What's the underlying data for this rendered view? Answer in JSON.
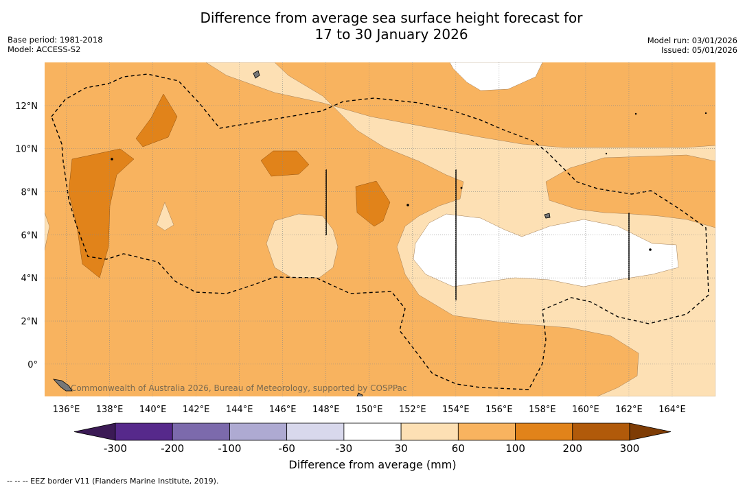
{
  "title": {
    "line1": "Difference from average sea surface height forecast for",
    "line2": "17 to 30 January 2026"
  },
  "meta_left": {
    "base_period": "Base period: 1981-2018",
    "model": "Model: ACCESS-S2"
  },
  "meta_right": {
    "model_run": "Model run: 03/01/2026",
    "issued": "Issued: 05/01/2026"
  },
  "map": {
    "credit": "Commonwealth of Australia 2026, Bureau of Meteorology, supported by COSPPac",
    "lon_labels": [
      "136°E",
      "138°E",
      "140°E",
      "142°E",
      "144°E",
      "146°E",
      "148°E",
      "150°E",
      "152°E",
      "154°E",
      "156°E",
      "158°E",
      "160°E",
      "162°E",
      "164°E"
    ],
    "lat_labels": [
      "12°N",
      "10°N",
      "8°N",
      "6°N",
      "4°N",
      "2°N",
      "0°"
    ],
    "lon_range": [
      135,
      166
    ],
    "lat_range": [
      -1.5,
      14
    ]
  },
  "colorbar": {
    "colors": [
      "#3b1a55",
      "#56298b",
      "#7c6aac",
      "#aeaad2",
      "#d8d8ec",
      "#ffffff",
      "#fde0b4",
      "#f8b35f",
      "#e1831a",
      "#b15a0a",
      "#7e3c05"
    ],
    "tick_labels": [
      "-300",
      "-200",
      "-100",
      "-60",
      "-30",
      "30",
      "60",
      "100",
      "200",
      "300"
    ],
    "label": "Difference from average (mm)"
  },
  "footnote": "--  --  -- EEZ border V11 (Flanders Marine Institute, 2019).",
  "colors": {
    "light": "#fde0b4",
    "medium": "#f8b35f",
    "dark": "#e1831a"
  }
}
